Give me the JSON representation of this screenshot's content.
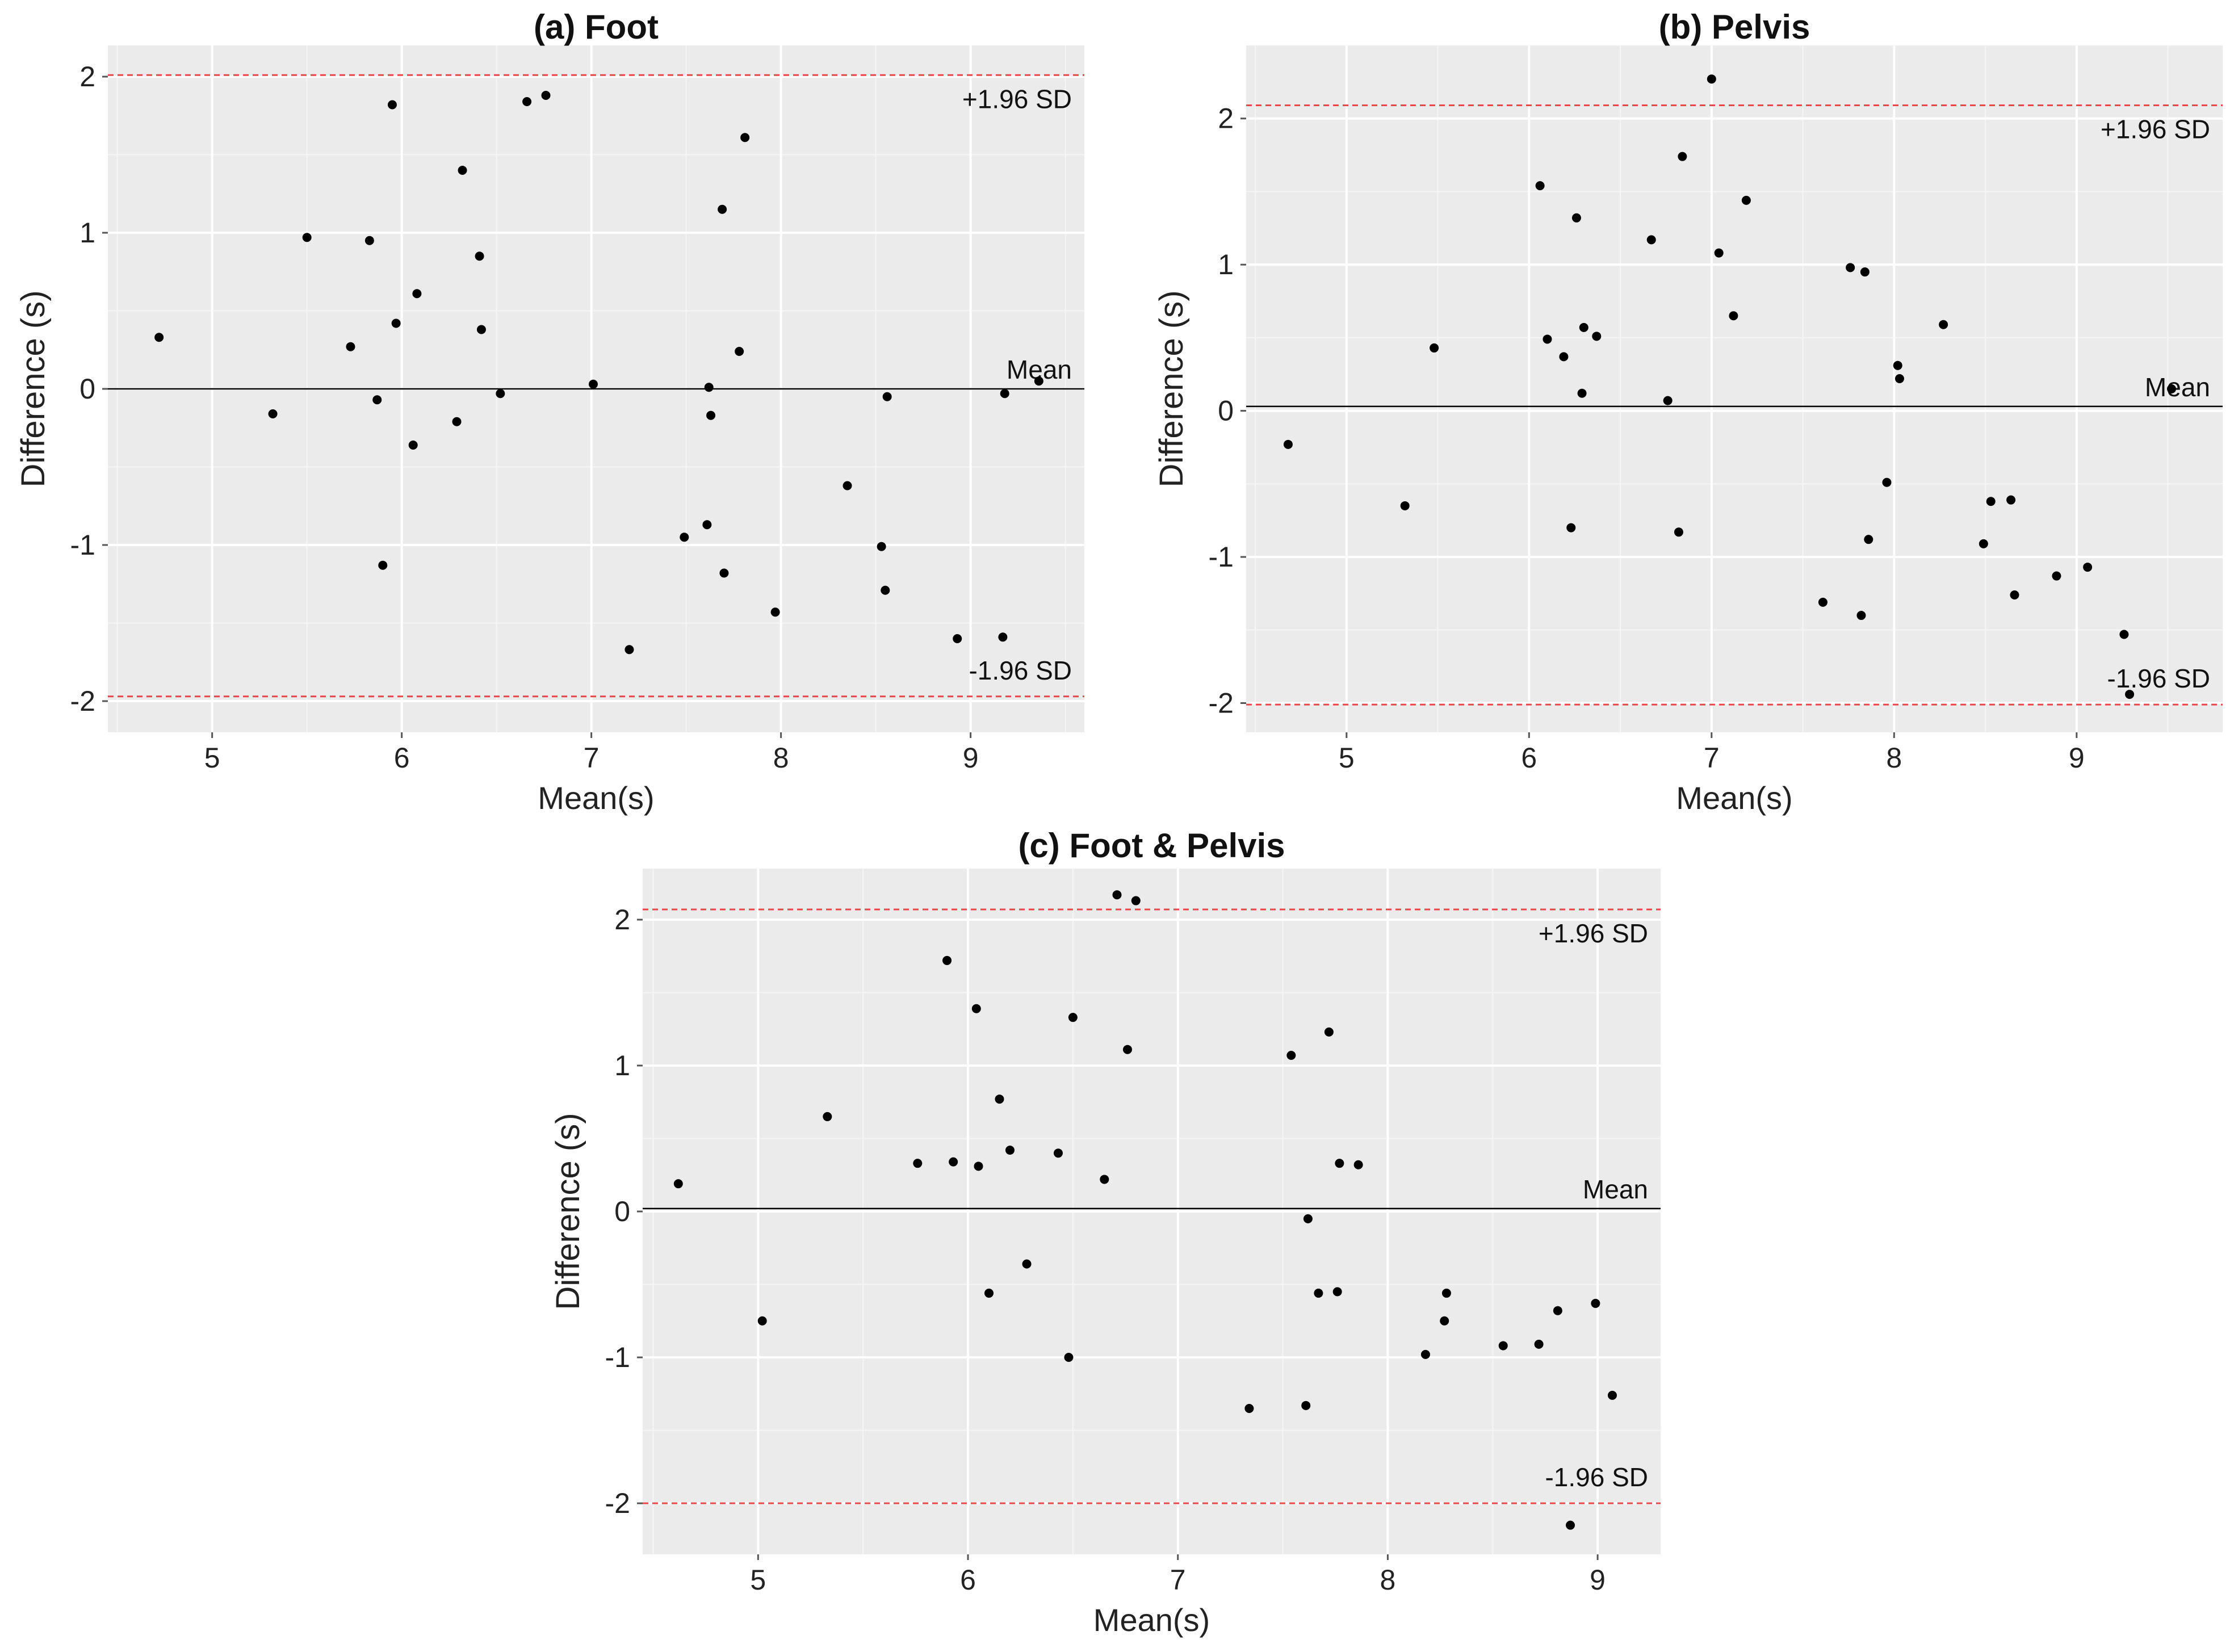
{
  "chart_data": [
    {
      "type": "scatter",
      "title": "(a) Foot",
      "xlabel": "Mean(s)",
      "ylabel": "Difference (s)",
      "xlim": [
        4.45,
        9.6
      ],
      "ylim": [
        -2.2,
        2.2
      ],
      "xticks": [
        "5",
        "6",
        "7",
        "8",
        "9"
      ],
      "yticks": [
        "-2",
        "-1",
        "0",
        "1",
        "2"
      ],
      "grid": true,
      "mean_line": {
        "value": 0.0,
        "label": "Mean"
      },
      "upper_limit": {
        "value": 2.01,
        "label": "+1.96 SD"
      },
      "lower_limit": {
        "value": -1.97,
        "label": "-1.96 SD"
      },
      "x": [
        4.72,
        5.32,
        5.5,
        5.73,
        5.83,
        5.87,
        5.9,
        5.95,
        5.97,
        6.06,
        6.08,
        6.29,
        6.32,
        6.41,
        6.42,
        6.52,
        6.66,
        6.76,
        7.01,
        7.2,
        7.49,
        7.61,
        7.62,
        7.63,
        7.69,
        7.7,
        7.78,
        7.81,
        7.97,
        8.35,
        8.53,
        8.55,
        8.56,
        8.93,
        9.17,
        9.18,
        9.36
      ],
      "y": [
        0.33,
        -0.16,
        0.97,
        0.27,
        0.95,
        -0.07,
        -1.13,
        1.82,
        0.42,
        -0.36,
        0.61,
        -0.21,
        1.4,
        0.85,
        0.38,
        -0.03,
        1.84,
        1.88,
        0.03,
        -1.67,
        -0.95,
        -0.87,
        0.01,
        -0.17,
        1.15,
        -1.18,
        0.24,
        1.61,
        -1.43,
        -0.62,
        -1.01,
        -1.29,
        -0.05,
        -1.6,
        -1.59,
        -0.03,
        0.05
      ]
    },
    {
      "type": "scatter",
      "title": "(b) Pelvis",
      "xlabel": "Mean(s)",
      "ylabel": "Difference (s)",
      "xlim": [
        4.45,
        9.8
      ],
      "ylim": [
        -2.2,
        2.5
      ],
      "xticks": [
        "5",
        "6",
        "7",
        "8",
        "9"
      ],
      "yticks": [
        "-2",
        "-1",
        "0",
        "1",
        "2"
      ],
      "grid": true,
      "mean_line": {
        "value": 0.03,
        "label": "Mean"
      },
      "upper_limit": {
        "value": 2.09,
        "label": "+1.96 SD"
      },
      "lower_limit": {
        "value": -2.01,
        "label": "-1.96 SD"
      },
      "x": [
        4.68,
        5.32,
        5.48,
        6.06,
        6.1,
        6.19,
        6.23,
        6.26,
        6.29,
        6.3,
        6.37,
        6.67,
        6.76,
        6.82,
        6.84,
        7.0,
        7.04,
        7.12,
        7.19,
        7.61,
        7.76,
        7.82,
        7.84,
        7.86,
        7.96,
        8.02,
        8.03,
        8.27,
        8.49,
        8.53,
        8.64,
        8.66,
        8.89,
        9.06,
        9.26,
        9.29,
        9.52
      ],
      "y": [
        -0.23,
        -0.65,
        0.43,
        1.54,
        0.49,
        0.37,
        -0.8,
        1.32,
        0.12,
        0.57,
        0.51,
        1.17,
        0.07,
        -0.83,
        1.74,
        2.27,
        1.08,
        0.65,
        1.44,
        -1.31,
        0.98,
        -1.4,
        0.95,
        -0.88,
        -0.49,
        0.31,
        0.22,
        0.59,
        -0.91,
        -0.62,
        -0.61,
        -1.26,
        -1.13,
        -1.07,
        -1.53,
        -1.94,
        0.15
      ]
    },
    {
      "type": "scatter",
      "title": "(c) Foot & Pelvis",
      "xlabel": "Mean(s)",
      "ylabel": "Difference (s)",
      "xlim": [
        4.45,
        9.3
      ],
      "ylim": [
        -2.35,
        2.35
      ],
      "xticks": [
        "5",
        "6",
        "7",
        "8",
        "9"
      ],
      "yticks": [
        "-2",
        "-1",
        "0",
        "1",
        "2"
      ],
      "grid": true,
      "mean_line": {
        "value": 0.02,
        "label": "Mean"
      },
      "upper_limit": {
        "value": 2.07,
        "label": "+1.96 SD"
      },
      "lower_limit": {
        "value": -2.0,
        "label": "-1.96 SD"
      },
      "x": [
        4.62,
        5.02,
        5.33,
        5.76,
        5.9,
        5.93,
        6.04,
        6.05,
        6.1,
        6.15,
        6.2,
        6.28,
        6.43,
        6.48,
        6.5,
        6.65,
        6.71,
        6.76,
        6.8,
        7.34,
        7.54,
        7.61,
        7.62,
        7.67,
        7.72,
        7.76,
        7.77,
        7.86,
        8.18,
        8.27,
        8.28,
        8.55,
        8.72,
        8.81,
        8.87,
        8.99,
        9.07
      ],
      "y": [
        0.19,
        -0.75,
        0.65,
        0.33,
        1.72,
        0.34,
        1.39,
        0.31,
        -0.56,
        0.77,
        0.42,
        -0.36,
        0.4,
        -1.0,
        1.33,
        0.22,
        2.17,
        1.11,
        2.13,
        -1.35,
        1.07,
        -1.33,
        -0.05,
        -0.56,
        1.23,
        -0.55,
        0.33,
        0.32,
        -0.98,
        -0.75,
        -0.56,
        -0.92,
        -0.91,
        -0.68,
        -2.15,
        -0.63,
        -1.26
      ]
    }
  ]
}
